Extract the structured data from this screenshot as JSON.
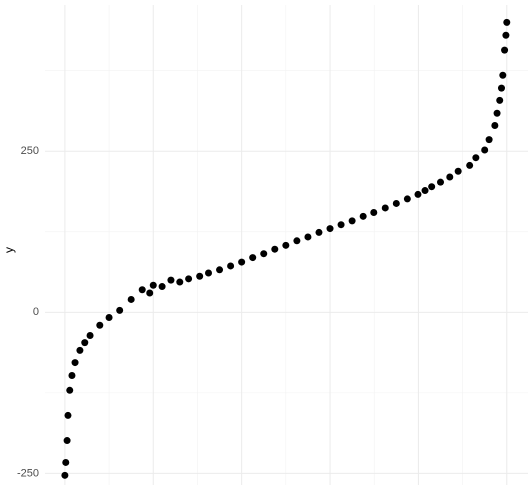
{
  "chart_data": {
    "type": "scatter",
    "y_label": "y",
    "color": "#000000",
    "x": [
      0,
      0.002,
      0.005,
      0.007,
      0.011,
      0.016,
      0.023,
      0.034,
      0.045,
      0.057,
      0.079,
      0.1,
      0.124,
      0.15,
      0.175,
      0.192,
      0.2,
      0.22,
      0.24,
      0.26,
      0.28,
      0.305,
      0.325,
      0.35,
      0.375,
      0.4,
      0.425,
      0.45,
      0.475,
      0.5,
      0.525,
      0.55,
      0.575,
      0.6,
      0.625,
      0.65,
      0.675,
      0.699,
      0.725,
      0.75,
      0.775,
      0.799,
      0.815,
      0.83,
      0.85,
      0.871,
      0.89,
      0.916,
      0.93,
      0.95,
      0.96,
      0.973,
      0.978,
      0.984,
      0.988,
      0.991,
      0.995,
      0.998,
      1
    ],
    "values": [
      -253,
      -233,
      -199,
      -160,
      -121,
      -98,
      -78,
      -59,
      -47,
      -36,
      -20,
      -8,
      3,
      20,
      35,
      30,
      42,
      40,
      50,
      47,
      52,
      56,
      61,
      66,
      72,
      78,
      85,
      91,
      98,
      104,
      111,
      117,
      124,
      130,
      136,
      142,
      149,
      155,
      162,
      169,
      176,
      183,
      189,
      195,
      202,
      210,
      219,
      228,
      240,
      252,
      268,
      290,
      309,
      329,
      348,
      368,
      407,
      430,
      450
    ],
    "xlim": [
      -0.045,
      1.048
    ],
    "xticks": [
      0,
      0.2,
      0.4,
      0.6,
      0.8,
      1
    ],
    "xminor_ticks": [
      0.1,
      0.3,
      0.5,
      0.7,
      0.9
    ],
    "ylim": [
      -268,
      477
    ],
    "yticks": [
      -250,
      0,
      250
    ],
    "yminor_ticks": [
      -125,
      125,
      375
    ],
    "grid": true
  }
}
